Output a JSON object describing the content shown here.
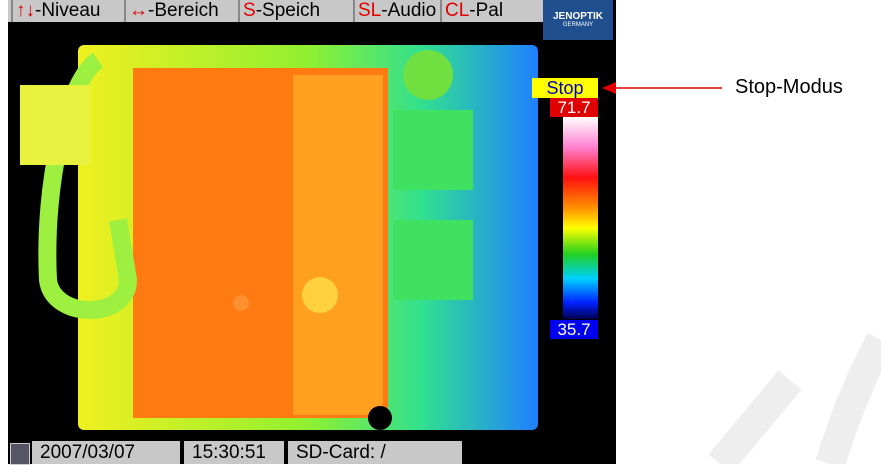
{
  "menu": [
    {
      "key": "↑↓",
      "label": "-Niveau"
    },
    {
      "key": "↔",
      "label": "-Bereich"
    },
    {
      "key": "S",
      "label": "-Speich"
    },
    {
      "key": "SL",
      "label": "-Audio"
    },
    {
      "key": "CL",
      "label": "-Pal"
    }
  ],
  "logo": {
    "name": "JENOPTIK",
    "sub": "GERMANY"
  },
  "mode": "Stop",
  "scale": {
    "max": "71.7",
    "min": "35.7"
  },
  "annotation": "Stop-Modus",
  "status": {
    "date": "2007/03/07",
    "time": "15:30:51",
    "storage": "SD-Card: /"
  }
}
